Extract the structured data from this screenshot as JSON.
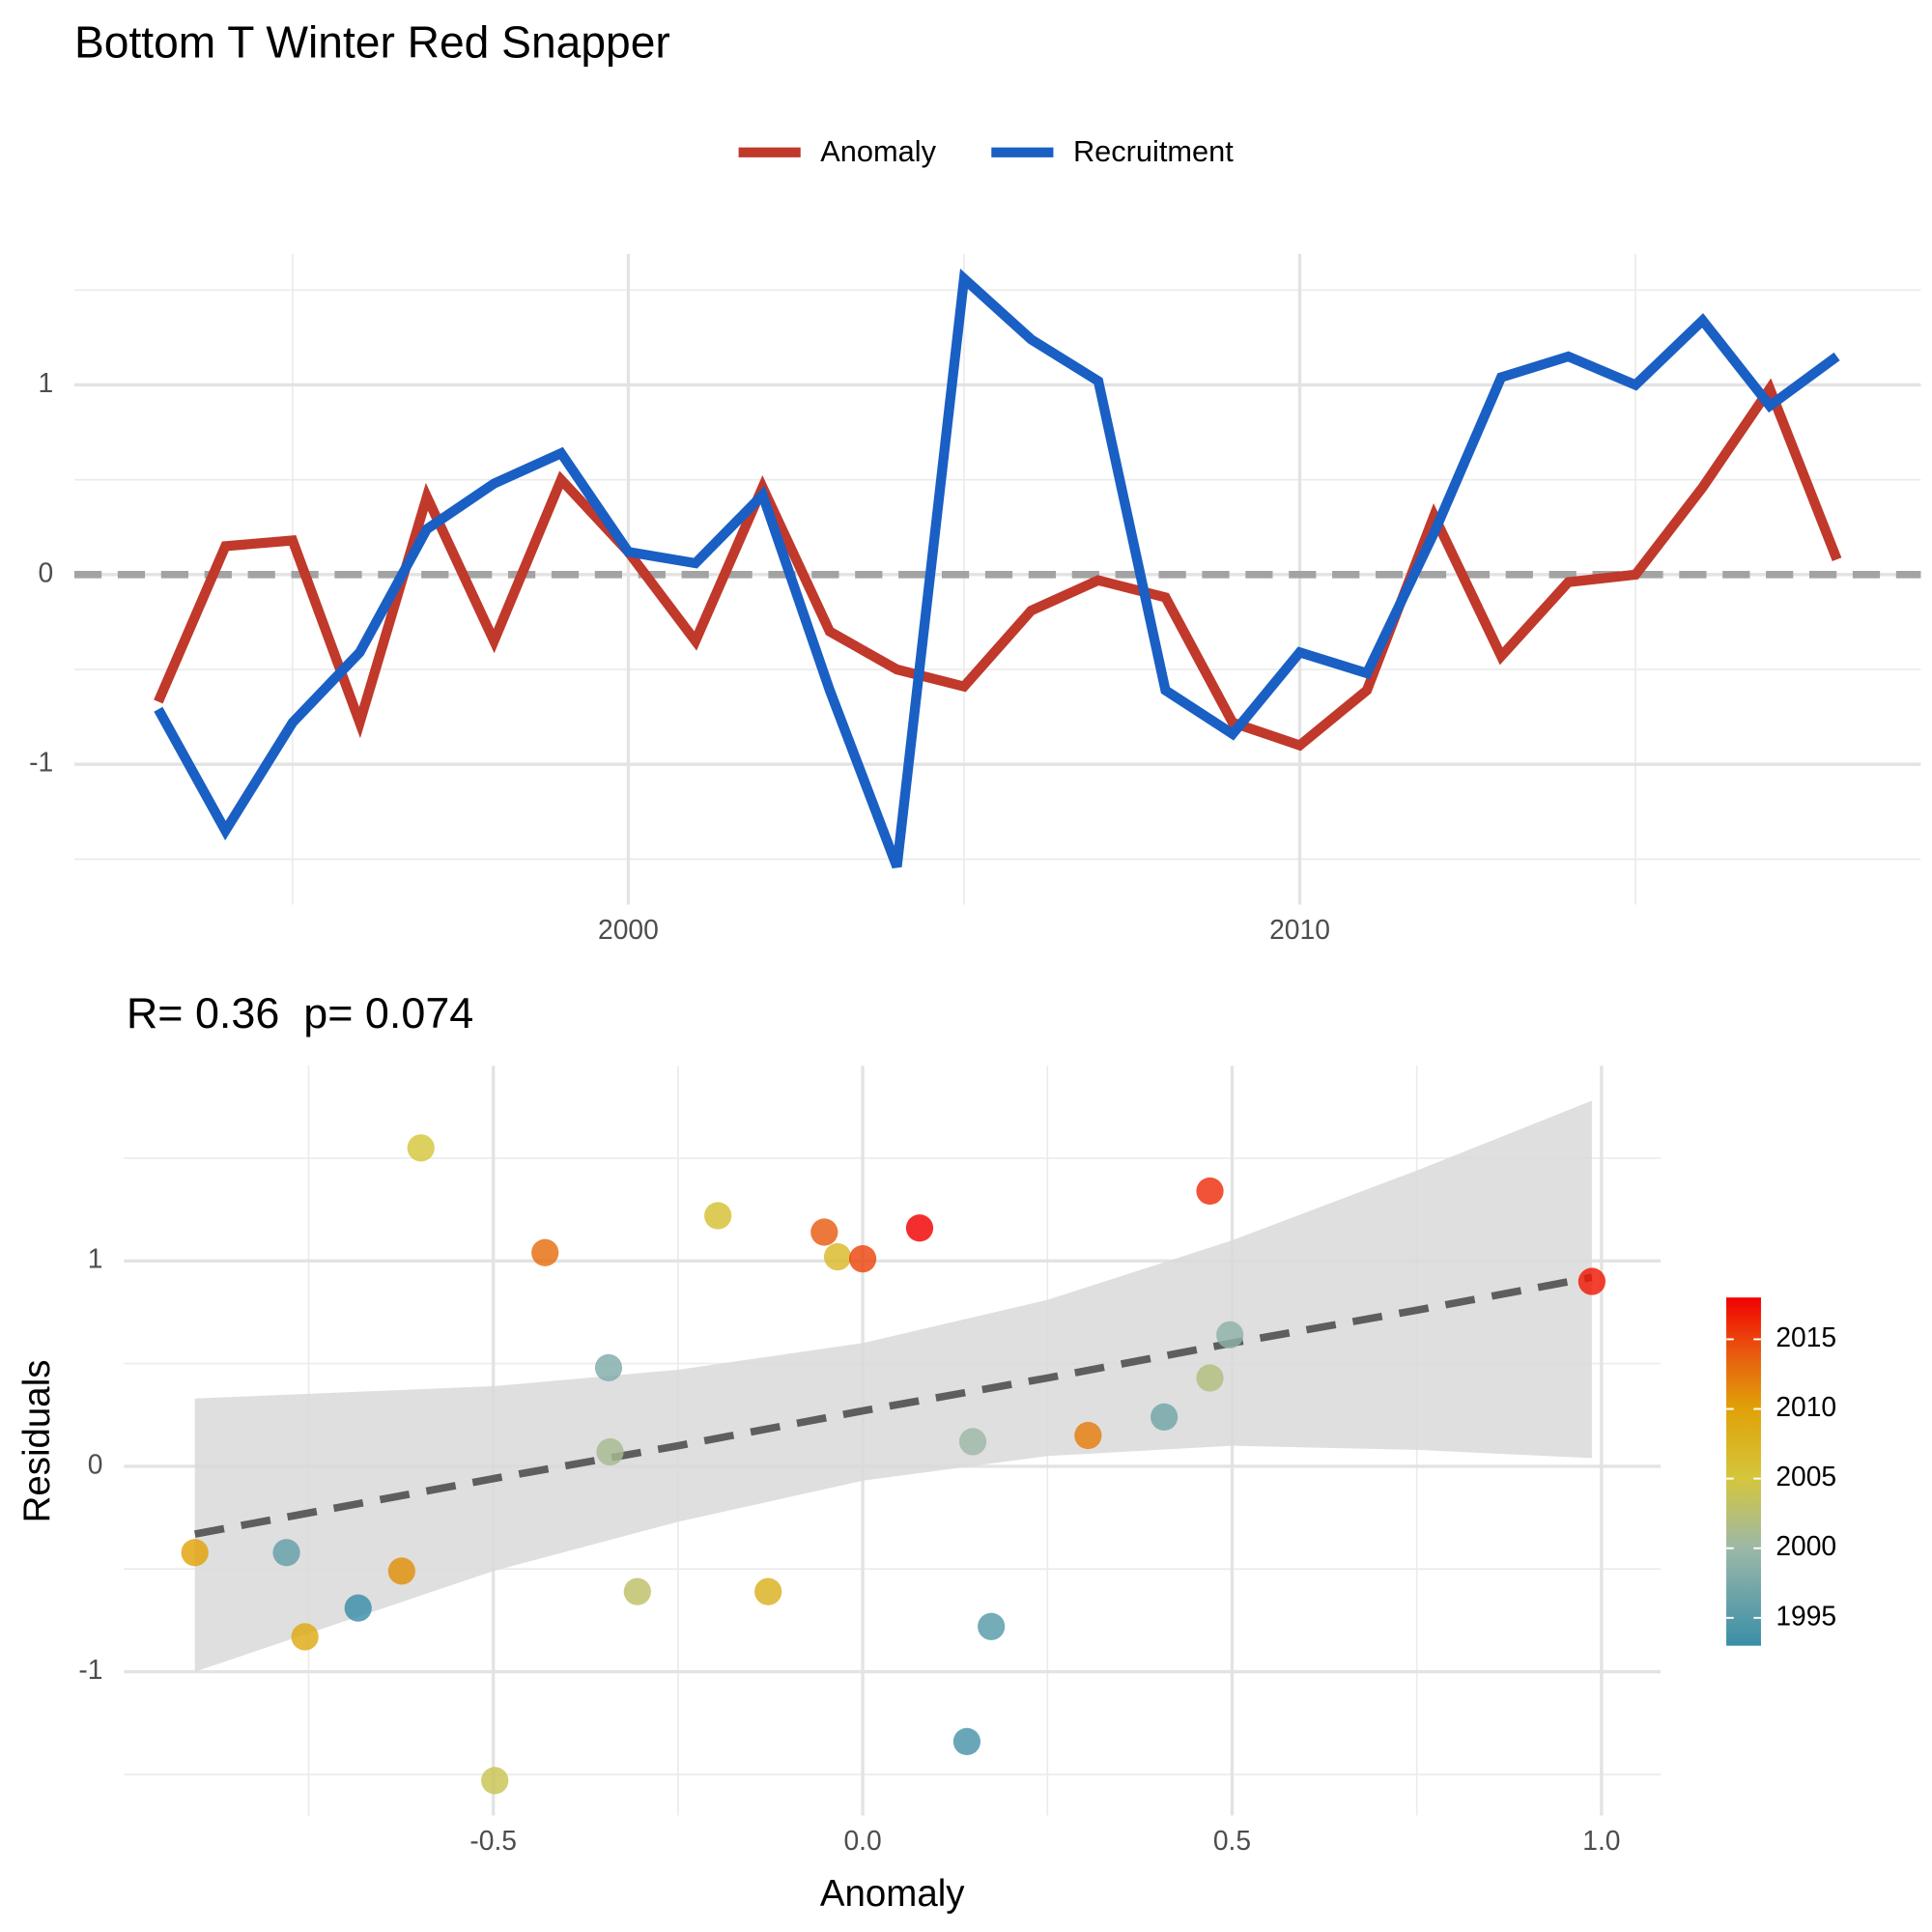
{
  "chart_data": [
    {
      "type": "line",
      "title": "Bottom T Winter Red Snapper",
      "x": [
        1993,
        1994,
        1995,
        1996,
        1997,
        1998,
        1999,
        2000,
        2001,
        2002,
        2003,
        2004,
        2005,
        2006,
        2007,
        2008,
        2009,
        2010,
        2011,
        2012,
        2013,
        2014,
        2015,
        2016,
        2017,
        2018
      ],
      "series": [
        {
          "name": "Anomaly",
          "color": "#c0392b",
          "values": [
            -0.67,
            0.15,
            0.18,
            -0.78,
            0.41,
            -0.35,
            0.5,
            0.12,
            -0.35,
            0.46,
            -0.3,
            -0.5,
            -0.59,
            -0.19,
            -0.03,
            -0.12,
            -0.78,
            -0.9,
            -0.61,
            0.31,
            -0.43,
            -0.04,
            0.0,
            0.46,
            0.98,
            0.08
          ]
        },
        {
          "name": "Recruitment",
          "color": "#1a5fc4",
          "values": [
            -0.71,
            -1.35,
            -0.78,
            -0.41,
            0.24,
            0.48,
            0.64,
            0.12,
            0.06,
            0.42,
            -0.61,
            -1.54,
            1.56,
            1.24,
            1.02,
            -0.61,
            -0.84,
            -0.41,
            -0.52,
            0.22,
            1.04,
            1.15,
            1.0,
            1.34,
            0.89,
            1.15
          ]
        }
      ],
      "xlim": [
        1991.75,
        2019.25
      ],
      "xticks": [
        2000,
        2010
      ],
      "xticks_minor": [
        1995,
        2005,
        2015
      ],
      "ylim": [
        -1.74,
        1.69
      ],
      "yticks": [
        -1,
        0,
        1
      ],
      "yticks_minor": [
        -1.5,
        -0.5,
        0.5,
        1.5
      ],
      "hline": 0,
      "grid": true,
      "legend": "top"
    },
    {
      "type": "scatter",
      "subtitle": "R= 0.36  p= 0.074",
      "xlabel": "Anomaly",
      "ylabel": "Residuals",
      "x": [
        -0.904,
        -0.78,
        -0.755,
        -0.683,
        -0.624,
        -0.598,
        -0.498,
        -0.43,
        -0.344,
        -0.342,
        -0.305,
        -0.196,
        -0.128,
        -0.052,
        -0.034,
        0.0,
        0.077,
        0.141,
        0.149,
        0.174,
        0.305,
        0.408,
        0.47,
        0.47,
        0.497,
        0.987
      ],
      "values": [
        -0.42,
        -0.42,
        -0.83,
        -0.69,
        -0.51,
        1.55,
        -1.53,
        1.04,
        0.48,
        0.07,
        -0.61,
        1.22,
        -0.61,
        1.14,
        1.02,
        1.01,
        1.16,
        -1.34,
        0.12,
        -0.78,
        0.15,
        0.24,
        1.34,
        0.43,
        0.64,
        0.9
      ],
      "years": [
        2010,
        1996,
        2009,
        1993,
        2011,
        2005,
        2004,
        2013,
        1998,
        2001,
        2003,
        2006,
        2008,
        2014,
        2007,
        2015,
        2018,
        1994,
        2000,
        1995,
        2012,
        1997,
        2016,
        2002,
        1999,
        2017
      ],
      "fit": {
        "x": [
          -0.904,
          -0.5,
          -0.25,
          0.0,
          0.25,
          0.5,
          0.75,
          0.987
        ],
        "values": [
          -0.33,
          -0.06,
          0.1,
          0.27,
          0.43,
          0.6,
          0.76,
          0.92
        ],
        "upper": [
          0.33,
          0.39,
          0.47,
          0.6,
          0.81,
          1.1,
          1.44,
          1.78
        ],
        "lower": [
          -1.0,
          -0.51,
          -0.27,
          -0.07,
          0.05,
          0.1,
          0.08,
          0.04
        ]
      },
      "xlim": [
        -1.0,
        1.08
      ],
      "xticks": [
        -0.5,
        {
          "value": 0,
          "label": "0.0"
        },
        0.5,
        {
          "value": 1,
          "label": "1.0"
        }
      ],
      "xticks_minor": [
        -0.75,
        -0.25,
        0.25,
        0.75
      ],
      "ylim": [
        -1.7,
        1.95
      ],
      "yticks": [
        -1,
        0,
        1
      ],
      "yticks_minor": [
        -1.5,
        -0.5,
        0.5,
        1.5
      ],
      "grid": true,
      "colorbar": {
        "lim": [
          1993,
          2018
        ],
        "ticks": [
          1995,
          2000,
          2005,
          2010,
          2015
        ],
        "stops": [
          {
            "value": 1993,
            "color": "#3a8ea8"
          },
          {
            "value": 2000,
            "color": "#9cb8a8"
          },
          {
            "value": 2005,
            "color": "#d4c63c"
          },
          {
            "value": 2010,
            "color": "#e0a208"
          },
          {
            "value": 2014,
            "color": "#e85a10"
          },
          {
            "value": 2018,
            "color": "#f20000"
          }
        ]
      }
    }
  ]
}
